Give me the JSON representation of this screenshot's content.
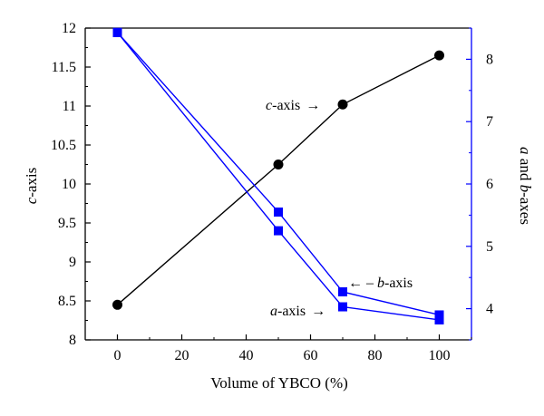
{
  "chart_data": {
    "type": "line",
    "xlabel": "Volume of YBCO (%)",
    "ylabel_left": {
      "prefix": "c",
      "suffix": "-axis"
    },
    "ylabel_right": {
      "part1": "a",
      "part2": " and ",
      "part3": "b",
      "part4": "-axes"
    },
    "xlim": [
      -10,
      110
    ],
    "ylim_left": [
      8,
      12
    ],
    "ylim_right": [
      3.5,
      8.5
    ],
    "x_ticks": [
      0,
      20,
      40,
      60,
      80,
      100
    ],
    "x_tick_labels": [
      "0",
      "20",
      "40",
      "60",
      "80",
      "100"
    ],
    "y_left_ticks": [
      8,
      8.5,
      9,
      9.5,
      10,
      10.5,
      11,
      11.5,
      12
    ],
    "y_left_tick_labels": [
      "8",
      "8.5",
      "9",
      "9.5",
      "10",
      "10.5",
      "11",
      "11.5",
      "12"
    ],
    "y_right_ticks": [
      4,
      5,
      6,
      7,
      8
    ],
    "y_right_tick_labels": [
      "4",
      "5",
      "6",
      "7",
      "8"
    ],
    "series": [
      {
        "key": "c",
        "axis": "left",
        "marker": "circle",
        "color": "#000000",
        "x": [
          0,
          50,
          70,
          100
        ],
        "y": [
          8.45,
          10.25,
          11.02,
          11.65
        ]
      },
      {
        "key": "a",
        "axis": "right",
        "marker": "square",
        "color": "#0000ff",
        "x": [
          0,
          50,
          70,
          100
        ],
        "y": [
          8.43,
          5.25,
          4.03,
          3.82
        ]
      },
      {
        "key": "b",
        "axis": "right",
        "marker": "square",
        "color": "#0000ff",
        "x": [
          0,
          50,
          70,
          100
        ],
        "y": [
          8.43,
          5.55,
          4.27,
          3.9
        ]
      }
    ],
    "annotations": {
      "c_axis": {
        "italic": "c",
        "rest": "-axis",
        "arrow": "→"
      },
      "b_axis": {
        "arrow": "←",
        "dash": " – ",
        "italic": "b",
        "rest": "-axis"
      },
      "a_axis": {
        "italic": "a",
        "rest": "-axis",
        "arrow": "→"
      }
    },
    "grid": false
  }
}
